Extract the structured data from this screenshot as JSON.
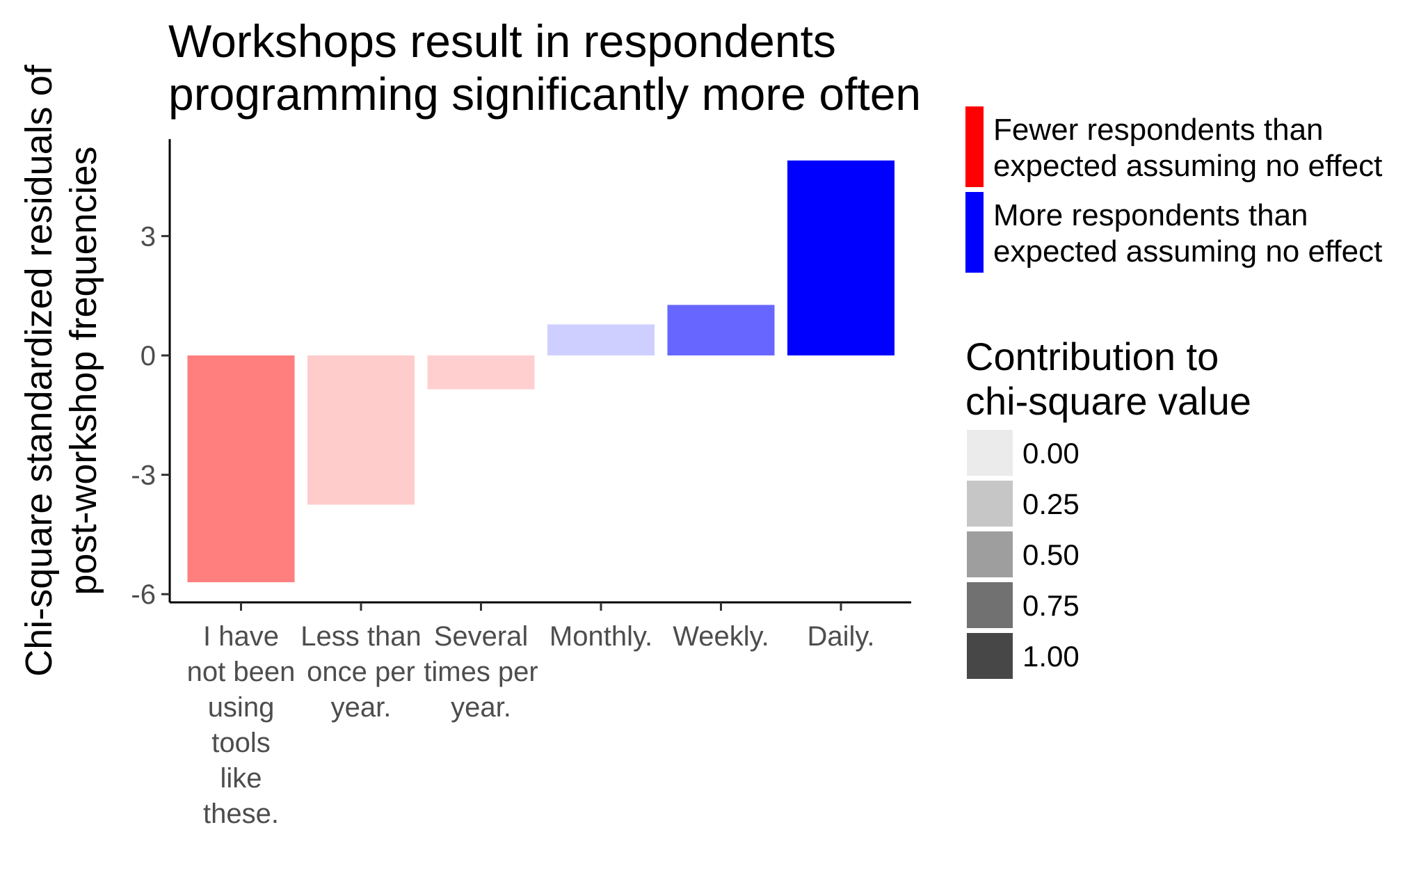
{
  "chart_data": {
    "type": "bar",
    "title_lines": [
      "Workshops result in respondents",
      "programming significantly more often"
    ],
    "ylabel_lines": [
      "Chi-square standardized residuals of",
      "post-workshop frequencies"
    ],
    "xlabel": "",
    "ylim": [
      -6.2,
      5.4
    ],
    "yticks": [
      {
        "value": -6,
        "label": "-6"
      },
      {
        "value": -3,
        "label": "-3"
      },
      {
        "value": 0,
        "label": "0"
      },
      {
        "value": 3,
        "label": "3"
      }
    ],
    "categories": [
      {
        "lines": [
          "I have",
          "not been",
          "using",
          "tools",
          "like",
          "these."
        ]
      },
      {
        "lines": [
          "Less than",
          "once per",
          "year."
        ]
      },
      {
        "lines": [
          "Several",
          "times per",
          "year."
        ]
      },
      {
        "lines": [
          "Monthly."
        ]
      },
      {
        "lines": [
          "Weekly."
        ]
      },
      {
        "lines": [
          "Daily."
        ]
      }
    ],
    "values": [
      -5.7,
      -3.75,
      -0.85,
      0.78,
      1.27,
      4.9
    ],
    "contribution": [
      0.45,
      0.11,
      0.1,
      0.1,
      0.55,
      1.0
    ],
    "fill_legend": [
      {
        "color": "#ff0000",
        "lines": [
          "Fewer respondents than",
          "expected assuming no effect"
        ]
      },
      {
        "color": "#0000ff",
        "lines": [
          "More respondents than",
          "expected assuming no effect"
        ]
      }
    ],
    "alpha_legend": {
      "title_lines": [
        "Contribution to",
        "chi-square value"
      ],
      "items": [
        {
          "label": "0.00",
          "color": "#ebebeb"
        },
        {
          "label": "0.25",
          "color": "#c6c6c6"
        },
        {
          "label": "0.50",
          "color": "#9e9e9e"
        },
        {
          "label": "0.75",
          "color": "#717171"
        },
        {
          "label": "1.00",
          "color": "#474747"
        }
      ]
    },
    "colors": {
      "negative": "#ff0000",
      "positive": "#0000ff"
    },
    "grid": false,
    "legend_position": "right"
  }
}
